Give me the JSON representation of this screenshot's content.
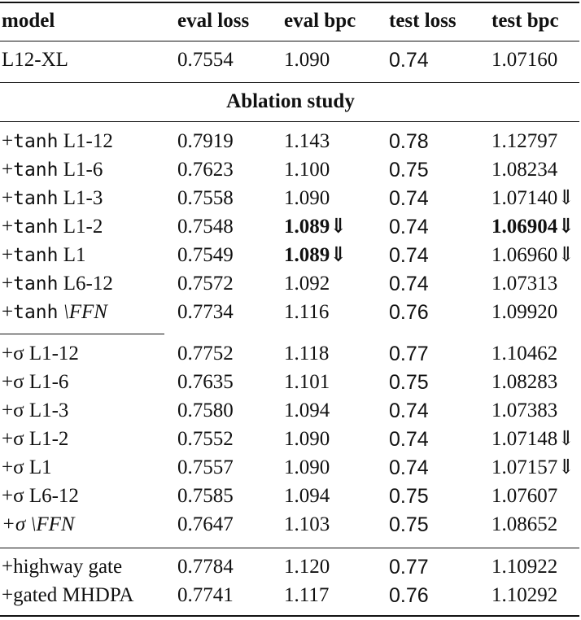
{
  "header": [
    "model",
    "eval loss",
    "eval bpc",
    "test loss",
    "test bpc"
  ],
  "baseline": [
    "L12-XL",
    "0.7554",
    "1.090",
    "0.74",
    "1.07160"
  ],
  "section_title": "Ablation study",
  "tanh_rows": [
    {
      "prefix": "+",
      "fn": "tanh",
      "suffix": " L1-12",
      "eval_loss": "0.7919",
      "eval_bpc": "1.143",
      "test_loss": "0.78",
      "test_bpc": "1.12797"
    },
    {
      "prefix": "+",
      "fn": "tanh",
      "suffix": " L1-6",
      "eval_loss": "0.7623",
      "eval_bpc": "1.100",
      "test_loss": "0.75",
      "test_bpc": "1.08234"
    },
    {
      "prefix": "+",
      "fn": "tanh",
      "suffix": " L1-3",
      "eval_loss": "0.7558",
      "eval_bpc": "1.090",
      "test_loss": "0.74",
      "test_bpc": "1.07140⇓"
    },
    {
      "prefix": "+",
      "fn": "tanh",
      "suffix": " L1-2",
      "eval_loss": "0.7548",
      "eval_bpc": "1.089⇓",
      "test_loss": "0.74",
      "test_bpc": "1.06904⇓"
    },
    {
      "prefix": "+",
      "fn": "tanh",
      "suffix": " L1",
      "eval_loss": "0.7549",
      "eval_bpc": "1.089⇓",
      "test_loss": "0.74",
      "test_bpc": "1.06960⇓"
    },
    {
      "prefix": "+",
      "fn": "tanh",
      "suffix": " L6-12",
      "eval_loss": "0.7572",
      "eval_bpc": "1.092",
      "test_loss": "0.74",
      "test_bpc": "1.07313"
    },
    {
      "prefix": "+",
      "fn": "tanh",
      "suffix": " \\FFN",
      "eval_loss": "0.7734",
      "eval_bpc": "1.116",
      "test_loss": "0.76",
      "test_bpc": "1.09920"
    }
  ],
  "sigma_rows": [
    {
      "label": "+σ L1-12",
      "eval_loss": "0.7752",
      "eval_bpc": "1.118",
      "test_loss": "0.77",
      "test_bpc": "1.10462"
    },
    {
      "label": "+σ L1-6",
      "eval_loss": "0.7635",
      "eval_bpc": "1.101",
      "test_loss": "0.75",
      "test_bpc": "1.08283"
    },
    {
      "label": "+σ L1-3",
      "eval_loss": "0.7580",
      "eval_bpc": "1.094",
      "test_loss": "0.74",
      "test_bpc": "1.07383"
    },
    {
      "label": "+σ L1-2",
      "eval_loss": "0.7552",
      "eval_bpc": "1.090",
      "test_loss": "0.74",
      "test_bpc": "1.07148⇓"
    },
    {
      "label": "+σ L1",
      "eval_loss": "0.7557",
      "eval_bpc": "1.090",
      "test_loss": "0.74",
      "test_bpc": "1.07157⇓"
    },
    {
      "label": "+σ L6-12",
      "eval_loss": "0.7585",
      "eval_bpc": "1.094",
      "test_loss": "0.75",
      "test_bpc": "1.07607"
    },
    {
      "label": "+σ \\FFN",
      "eval_loss": "0.7647",
      "eval_bpc": "1.103",
      "test_loss": "0.75",
      "test_bpc": "1.08652"
    }
  ],
  "gate_rows": [
    {
      "label": "+highway gate",
      "eval_loss": "0.7784",
      "eval_bpc": "1.120",
      "test_loss": "0.77",
      "test_bpc": "1.10922"
    },
    {
      "label": "+gated MHDPA",
      "eval_loss": "0.7741",
      "eval_bpc": "1.117",
      "test_loss": "0.76",
      "test_bpc": "1.10292"
    }
  ],
  "bold_cells": [
    "tanh_rows.3.eval_bpc",
    "tanh_rows.3.test_bpc",
    "tanh_rows.4.eval_bpc"
  ]
}
